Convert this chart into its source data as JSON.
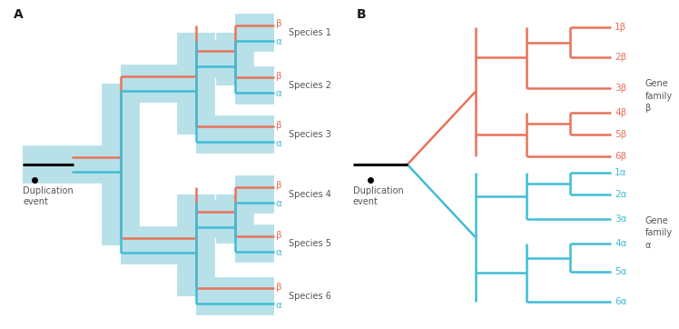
{
  "fig_width": 7.48,
  "fig_height": 3.62,
  "dpi": 100,
  "bg_color": "#ffffff",
  "orange_color": "#E8735A",
  "blue_color": "#40BDD5",
  "light_blue_bg": "#B8E0E8",
  "black_color": "#1a1a1a",
  "gray_color": "#555555",
  "panel_A_label": "A",
  "panel_B_label": "B",
  "species_labels": [
    "Species 1",
    "Species 2",
    "Species 3",
    "Species 4",
    "Species 5",
    "Species 6"
  ],
  "gene_beta_labels": [
    "1β",
    "2β",
    "3β",
    "4β",
    "5β",
    "6β"
  ],
  "gene_alpha_labels": [
    "1α",
    "2α",
    "3α",
    "4α",
    "5α",
    "6α"
  ],
  "duplication_label": "Duplication\nevent",
  "gene_family_beta_label": "Gene\nfamily\nβ",
  "gene_family_alpha_label": "Gene\nfamily\nα",
  "beta_label": "β",
  "alpha_label": "α",
  "lw_main": 1.8,
  "fontsize_label": 7.0,
  "fontsize_panel": 10,
  "fontsize_greek": 7.5,
  "fontsize_family": 7.0
}
